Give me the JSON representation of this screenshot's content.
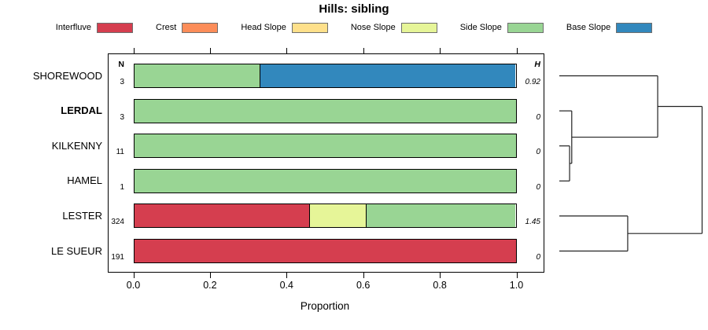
{
  "chart_data": {
    "type": "bar",
    "orientation": "horizontal",
    "stacked": true,
    "title": "Hills: sibling",
    "xlabel": "Proportion",
    "xlim": [
      0,
      1
    ],
    "xticks": [
      "0.0",
      "0.2",
      "0.4",
      "0.6",
      "0.8",
      "1.0"
    ],
    "columns": {
      "n_header": "N",
      "h_header": "H"
    },
    "legend": [
      {
        "label": "Interfluve",
        "color": "#d53e4f"
      },
      {
        "label": "Crest",
        "color": "#fc8d59"
      },
      {
        "label": "Head Slope",
        "color": "#fee08b"
      },
      {
        "label": "Nose Slope",
        "color": "#e6f598"
      },
      {
        "label": "Side Slope",
        "color": "#99d594"
      },
      {
        "label": "Base Slope",
        "color": "#3288bd"
      }
    ],
    "rows": [
      {
        "label": "SHOREWOOD",
        "bold": false,
        "n": "3",
        "h": "0.92",
        "segments": [
          {
            "category": "Side Slope",
            "value": 0.33
          },
          {
            "category": "Base Slope",
            "value": 0.67
          }
        ]
      },
      {
        "label": "LERDAL",
        "bold": true,
        "n": "3",
        "h": "0",
        "segments": [
          {
            "category": "Side Slope",
            "value": 1.0
          }
        ]
      },
      {
        "label": "KILKENNY",
        "bold": false,
        "n": "11",
        "h": "0",
        "segments": [
          {
            "category": "Side Slope",
            "value": 1.0
          }
        ]
      },
      {
        "label": "HAMEL",
        "bold": false,
        "n": "1",
        "h": "0",
        "segments": [
          {
            "category": "Side Slope",
            "value": 1.0
          }
        ]
      },
      {
        "label": "LESTER",
        "bold": false,
        "n": "324",
        "h": "1.45",
        "segments": [
          {
            "category": "Interfluve",
            "value": 0.46
          },
          {
            "category": "Nose Slope",
            "value": 0.15
          },
          {
            "category": "Side Slope",
            "value": 0.39
          }
        ]
      },
      {
        "label": "LE SUEUR",
        "bold": false,
        "n": "191",
        "h": "0",
        "segments": [
          {
            "category": "Interfluve",
            "value": 1.0
          }
        ]
      }
    ],
    "dendrogram": {
      "tree": {
        "height": 1.0,
        "children": [
          {
            "height": 0.689,
            "children": [
              {
                "leaf": "SHOREWOOD"
              },
              {
                "height": 0.087,
                "children": [
                  {
                    "leaf": "LERDAL"
                  },
                  {
                    "height": 0.072,
                    "children": [
                      {
                        "leaf": "KILKENNY"
                      },
                      {
                        "leaf": "HAMEL"
                      }
                    ]
                  }
                ]
              }
            ]
          },
          {
            "height": 0.479,
            "children": [
              {
                "leaf": "LESTER"
              },
              {
                "leaf": "LE SUEUR"
              }
            ]
          }
        ]
      }
    }
  }
}
